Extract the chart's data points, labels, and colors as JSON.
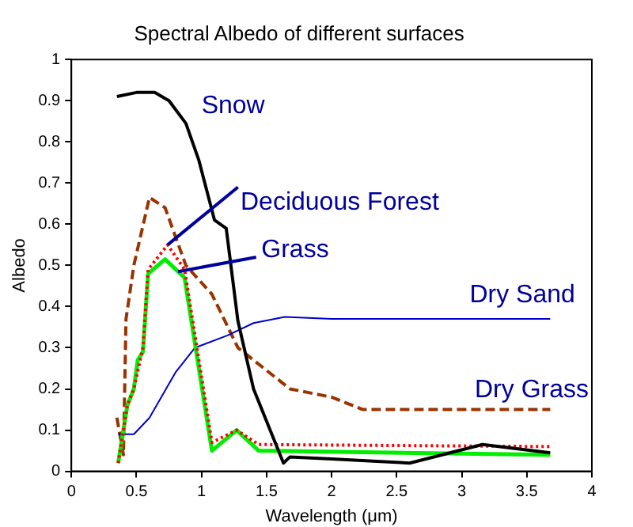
{
  "chart_data": {
    "type": "line",
    "title": "Spectral Albedo of different surfaces",
    "xlabel": "Wavelength (μm)",
    "ylabel": "Albedo",
    "xlim": [
      0,
      4
    ],
    "xticks": [
      0,
      0.5,
      1,
      1.5,
      2,
      2.5,
      3,
      3.5,
      4
    ],
    "ylim": [
      0,
      1
    ],
    "yticks": [
      0,
      0.1,
      0.2,
      0.3,
      0.4,
      0.5,
      0.6,
      0.7,
      0.8,
      0.9,
      1
    ],
    "grid": false,
    "legend": false,
    "marker": "none",
    "series": [
      {
        "name": "Snow",
        "color": "#000000",
        "line_style": "solid",
        "x": [
          0.35,
          0.5,
          0.64,
          0.75,
          0.88,
          0.98,
          1.1,
          1.19,
          1.28,
          1.4,
          1.63,
          1.68,
          2.0,
          2.6,
          3.16,
          3.68
        ],
        "values": [
          0.91,
          0.92,
          0.92,
          0.9,
          0.845,
          0.755,
          0.61,
          0.59,
          0.365,
          0.2,
          0.02,
          0.035,
          0.03,
          0.02,
          0.065,
          0.045
        ]
      },
      {
        "name": "Deciduous Forest",
        "color": "#ff0000",
        "line_style": "dotted",
        "x": [
          0.36,
          0.43,
          0.48,
          0.55,
          0.59,
          0.74,
          0.87,
          1.08,
          1.27,
          1.44,
          3.68
        ],
        "values": [
          0.02,
          0.16,
          0.2,
          0.3,
          0.49,
          0.55,
          0.49,
          0.07,
          0.1,
          0.065,
          0.06
        ]
      },
      {
        "name": "Grass",
        "color": "#00ee00",
        "line_style": "solid",
        "x": [
          0.36,
          0.43,
          0.48,
          0.51,
          0.55,
          0.59,
          0.72,
          0.87,
          1.08,
          1.27,
          1.44,
          3.68
        ],
        "values": [
          0.02,
          0.16,
          0.2,
          0.27,
          0.29,
          0.48,
          0.515,
          0.47,
          0.05,
          0.1,
          0.05,
          0.04
        ]
      },
      {
        "name": "Dry Sand",
        "color": "#0000cc",
        "line_style": "solid",
        "x": [
          0.36,
          0.48,
          0.6,
          0.8,
          0.95,
          1.2,
          1.4,
          1.64,
          2.0,
          3.68
        ],
        "values": [
          0.09,
          0.09,
          0.13,
          0.24,
          0.3,
          0.33,
          0.36,
          0.375,
          0.37,
          0.37
        ]
      },
      {
        "name": "Dry Grass",
        "color": "#993300",
        "line_style": "dashed",
        "x": [
          0.35,
          0.4,
          0.42,
          0.48,
          0.6,
          0.72,
          0.88,
          1.08,
          1.28,
          1.48,
          1.68,
          2.0,
          2.24,
          3.68
        ],
        "values": [
          0.13,
          0.04,
          0.37,
          0.5,
          0.665,
          0.64,
          0.5,
          0.43,
          0.3,
          0.25,
          0.2,
          0.18,
          0.15,
          0.15
        ]
      }
    ]
  }
}
